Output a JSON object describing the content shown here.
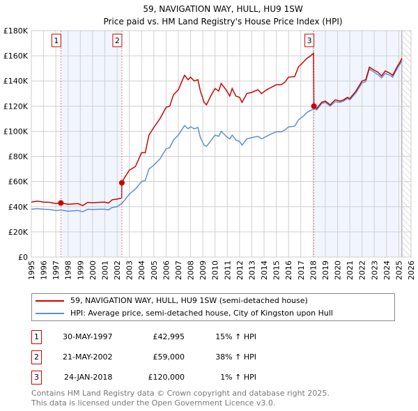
{
  "chart_data": {
    "type": "line",
    "title": "59, NAVIGATION WAY, HULL, HU9 1SW",
    "subtitle": "Price paid vs. HM Land Registry's House Price Index (HPI)",
    "xlim": [
      1995,
      2026
    ],
    "ylim": [
      0,
      180000
    ],
    "x_ticks": [
      "1995",
      "1996",
      "1997",
      "1998",
      "1999",
      "2000",
      "2001",
      "2002",
      "2003",
      "2004",
      "2005",
      "2006",
      "2007",
      "2008",
      "2009",
      "2010",
      "2011",
      "2012",
      "2013",
      "2014",
      "2015",
      "2016",
      "2017",
      "2018",
      "2019",
      "2020",
      "2021",
      "2022",
      "2023",
      "2024",
      "2025",
      "2026"
    ],
    "y_ticks": [
      {
        "v": 0,
        "label": "£0"
      },
      {
        "v": 20000,
        "label": "£20K"
      },
      {
        "v": 40000,
        "label": "£40K"
      },
      {
        "v": 60000,
        "label": "£60K"
      },
      {
        "v": 80000,
        "label": "£80K"
      },
      {
        "v": 100000,
        "label": "£100K"
      },
      {
        "v": 120000,
        "label": "£120K"
      },
      {
        "v": 140000,
        "label": "£140K"
      },
      {
        "v": 160000,
        "label": "£160K"
      },
      {
        "v": 180000,
        "label": "£180K"
      }
    ],
    "grid": true,
    "forecast_from": 2025.25,
    "series": [
      {
        "name": "59, NAVIGATION WAY, HULL, HU9 1SW (semi-detached house)",
        "color": "#cc0000",
        "points": [
          [
            1995,
            43.7
          ],
          [
            1995.5,
            44.5
          ],
          [
            1996,
            43.7
          ],
          [
            1996.5,
            43.5
          ],
          [
            1997,
            42.6
          ],
          [
            1997.41,
            43.0
          ],
          [
            1998,
            42.0
          ],
          [
            1998.8,
            42.5
          ],
          [
            1999.2,
            41
          ],
          [
            1999.6,
            43.5
          ],
          [
            2000,
            43.2
          ],
          [
            2000.5,
            43.5
          ],
          [
            2001,
            43.7
          ],
          [
            2001.3,
            43
          ],
          [
            2001.6,
            45.5
          ],
          [
            2002,
            46
          ],
          [
            2002.38,
            47
          ],
          [
            2002.39,
            59
          ],
          [
            2002.6,
            63
          ],
          [
            2003,
            69
          ],
          [
            2003.5,
            72
          ],
          [
            2004,
            83
          ],
          [
            2004.3,
            83
          ],
          [
            2004.6,
            97
          ],
          [
            2005,
            103
          ],
          [
            2005.5,
            110
          ],
          [
            2006,
            119
          ],
          [
            2006.3,
            120
          ],
          [
            2006.6,
            129
          ],
          [
            2007,
            133
          ],
          [
            2007.5,
            144.5
          ],
          [
            2007.8,
            141
          ],
          [
            2008,
            143
          ],
          [
            2008.3,
            140
          ],
          [
            2008.6,
            141
          ],
          [
            2008.8,
            132
          ],
          [
            2009.1,
            123
          ],
          [
            2009.3,
            121
          ],
          [
            2009.7,
            129
          ],
          [
            2010,
            134
          ],
          [
            2010.3,
            132
          ],
          [
            2010.5,
            138
          ],
          [
            2010.9,
            133
          ],
          [
            2011.2,
            128
          ],
          [
            2011.4,
            134
          ],
          [
            2011.7,
            128
          ],
          [
            2012,
            127
          ],
          [
            2012.2,
            123
          ],
          [
            2012.6,
            130
          ],
          [
            2013,
            131
          ],
          [
            2013.5,
            133
          ],
          [
            2013.8,
            130
          ],
          [
            2014.2,
            133
          ],
          [
            2014.6,
            135
          ],
          [
            2015,
            137
          ],
          [
            2015.4,
            137
          ],
          [
            2015.7,
            139
          ],
          [
            2016,
            143
          ],
          [
            2016.5,
            143.5
          ],
          [
            2016.8,
            151
          ],
          [
            2017.2,
            155
          ],
          [
            2017.5,
            158
          ],
          [
            2017.8,
            160
          ],
          [
            2018.04,
            162
          ],
          [
            2018.07,
            120
          ],
          [
            2018.3,
            118
          ],
          [
            2018.7,
            123
          ],
          [
            2019,
            124
          ],
          [
            2019.4,
            121
          ],
          [
            2019.8,
            125
          ],
          [
            2020.2,
            124
          ],
          [
            2020.5,
            125
          ],
          [
            2020.8,
            127
          ],
          [
            2021,
            126
          ],
          [
            2021.5,
            132
          ],
          [
            2022,
            140
          ],
          [
            2022.3,
            141
          ],
          [
            2022.6,
            151
          ],
          [
            2023,
            148.5
          ],
          [
            2023.3,
            147
          ],
          [
            2023.6,
            144
          ],
          [
            2023.9,
            148
          ],
          [
            2024.3,
            146
          ],
          [
            2024.5,
            144.5
          ],
          [
            2024.9,
            152
          ],
          [
            2025.1,
            155
          ],
          [
            2025.25,
            158
          ]
        ]
      },
      {
        "name": "HPI: Average price, semi-detached house, City of Kingston upon Hull",
        "color": "#5b8fd6",
        "points": [
          [
            1995,
            38
          ],
          [
            1995.5,
            38.5
          ],
          [
            1996,
            38
          ],
          [
            1996.5,
            37.8
          ],
          [
            1997,
            37
          ],
          [
            1997.41,
            37.4
          ],
          [
            1998,
            36.5
          ],
          [
            1998.8,
            37
          ],
          [
            1999.2,
            36
          ],
          [
            1999.6,
            38
          ],
          [
            2000,
            37.8
          ],
          [
            2000.5,
            38
          ],
          [
            2001,
            38
          ],
          [
            2001.3,
            37.5
          ],
          [
            2001.6,
            39.5
          ],
          [
            2002,
            40
          ],
          [
            2002.39,
            42.7
          ],
          [
            2002.6,
            45
          ],
          [
            2003,
            50
          ],
          [
            2003.5,
            54
          ],
          [
            2004,
            60
          ],
          [
            2004.3,
            61
          ],
          [
            2004.6,
            70
          ],
          [
            2005,
            73
          ],
          [
            2005.5,
            78
          ],
          [
            2006,
            86
          ],
          [
            2006.3,
            87
          ],
          [
            2006.6,
            93
          ],
          [
            2007,
            97
          ],
          [
            2007.5,
            104.5
          ],
          [
            2007.8,
            102
          ],
          [
            2008,
            103.5
          ],
          [
            2008.3,
            102
          ],
          [
            2008.6,
            103
          ],
          [
            2008.8,
            95
          ],
          [
            2009.1,
            89
          ],
          [
            2009.3,
            88
          ],
          [
            2009.7,
            93
          ],
          [
            2010,
            97
          ],
          [
            2010.3,
            96
          ],
          [
            2010.5,
            100
          ],
          [
            2010.9,
            96
          ],
          [
            2011.2,
            94
          ],
          [
            2011.4,
            97
          ],
          [
            2011.7,
            93
          ],
          [
            2012,
            92
          ],
          [
            2012.2,
            89
          ],
          [
            2012.6,
            94
          ],
          [
            2013,
            95
          ],
          [
            2013.5,
            96
          ],
          [
            2013.8,
            94
          ],
          [
            2014.2,
            96
          ],
          [
            2014.6,
            98
          ],
          [
            2015,
            99.5
          ],
          [
            2015.4,
            99.5
          ],
          [
            2015.7,
            101
          ],
          [
            2016,
            103.5
          ],
          [
            2016.5,
            104
          ],
          [
            2016.8,
            109
          ],
          [
            2017.2,
            112
          ],
          [
            2017.5,
            115
          ],
          [
            2017.8,
            116.5
          ],
          [
            2018.07,
            118
          ],
          [
            2018.3,
            117
          ],
          [
            2018.7,
            122
          ],
          [
            2019,
            123
          ],
          [
            2019.4,
            120
          ],
          [
            2019.8,
            123.5
          ],
          [
            2020.2,
            123
          ],
          [
            2020.5,
            124
          ],
          [
            2020.8,
            126
          ],
          [
            2021,
            125
          ],
          [
            2021.5,
            130.5
          ],
          [
            2022,
            138.5
          ],
          [
            2022.3,
            139.5
          ],
          [
            2022.6,
            149.5
          ],
          [
            2023,
            147
          ],
          [
            2023.3,
            145
          ],
          [
            2023.6,
            142.5
          ],
          [
            2023.9,
            146
          ],
          [
            2024.3,
            144.5
          ],
          [
            2024.5,
            143
          ],
          [
            2024.9,
            150.5
          ],
          [
            2025.1,
            153.5
          ],
          [
            2025.25,
            156
          ]
        ]
      }
    ],
    "sales": [
      {
        "n": "1",
        "x": 1997.41,
        "y": 42995,
        "date": "30-MAY-1997",
        "price": "£42,995",
        "hpi": "15% ↑ HPI"
      },
      {
        "n": "2",
        "x": 2002.39,
        "y": 59000,
        "date": "21-MAY-2002",
        "price": "£59,000",
        "hpi": "38% ↑ HPI"
      },
      {
        "n": "3",
        "x": 2018.07,
        "y": 120000,
        "date": "24-JAN-2018",
        "price": "£120,000",
        "hpi": "1% ↑ HPI"
      }
    ]
  },
  "footer": [
    "Contains HM Land Registry data © Crown copyright and database right 2025.",
    "This data is licensed under the Open Government Licence v3.0."
  ]
}
